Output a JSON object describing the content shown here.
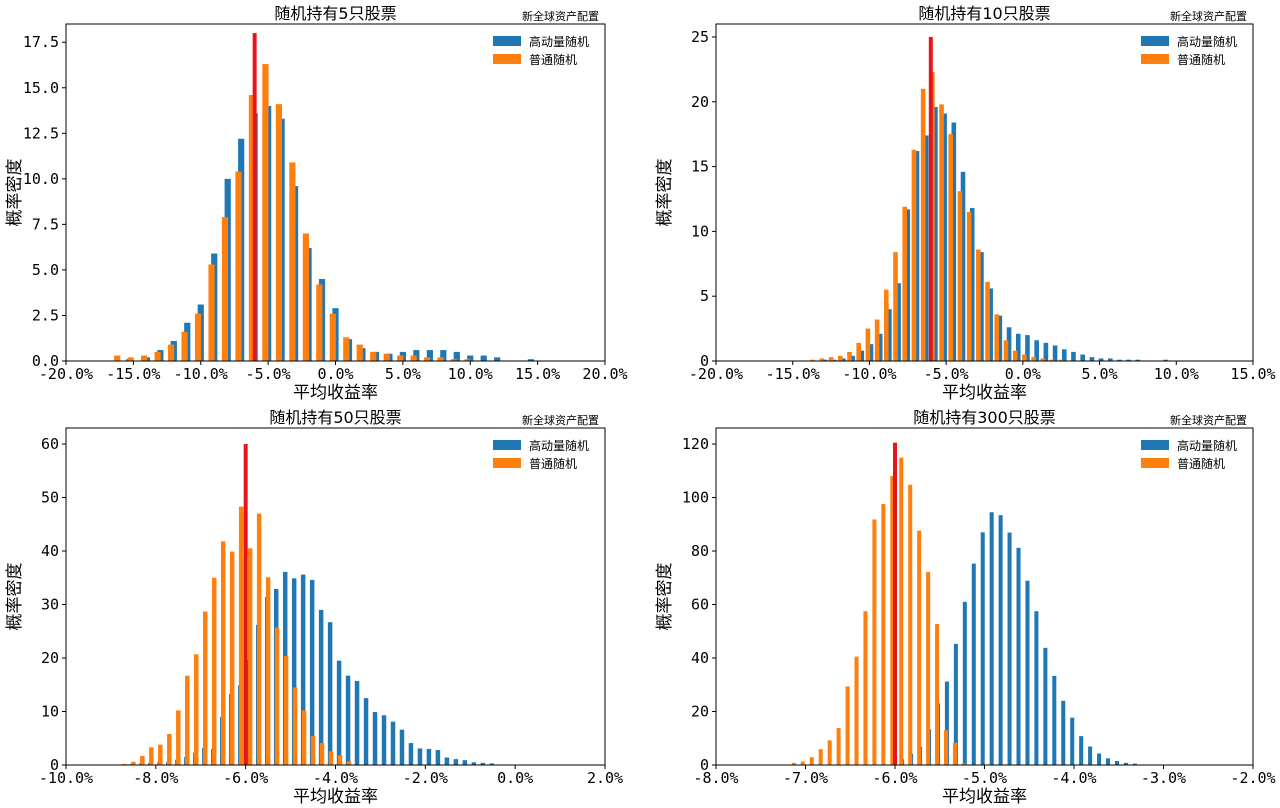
{
  "watermark": "新全球资产配置",
  "colors": {
    "momentum": "#1f77b4",
    "normal": "#ff7f0e",
    "marker": "#e8141c",
    "axis": "#000000",
    "background": "#ffffff"
  },
  "chart_data": [
    {
      "type": "bar",
      "title": "随机持有5只股票",
      "xlabel": "平均收益率",
      "ylabel": "概率密度",
      "xlim": [
        -20,
        20
      ],
      "ylim": [
        0,
        18.5
      ],
      "xticks": [
        -20,
        -15,
        -10,
        -5,
        0,
        5,
        10,
        15,
        20
      ],
      "xtick_labels": [
        "-20.0%",
        "-15.0%",
        "-10.0%",
        "-5.0%",
        "0.0%",
        "5.0%",
        "10.0%",
        "15.0%",
        "20.0%"
      ],
      "yticks": [
        0,
        2.5,
        5,
        7.5,
        10,
        12.5,
        15,
        17.5
      ],
      "ytick_labels": [
        "0.0",
        "2.5",
        "5.0",
        "7.5",
        "10.0",
        "12.5",
        "15.0",
        "17.5"
      ],
      "legend_position": "top-right",
      "bar_width": 0.46,
      "marker_line": {
        "x": -6.0,
        "height": 18.0
      },
      "series": [
        {
          "name": "高动量随机",
          "color": "#1f77b4",
          "x": [
            -15.3,
            -14.0,
            -13.0,
            -12.0,
            -11.0,
            -10.0,
            -9.0,
            -8.0,
            -7.0,
            -6.0,
            -5.0,
            -4.0,
            -3.0,
            -2.0,
            -1.0,
            0.0,
            1.0,
            2.0,
            3.0,
            4.0,
            5.0,
            6.0,
            7.0,
            8.0,
            9.0,
            10.0,
            11.0,
            12.0,
            14.5
          ],
          "values": [
            0.1,
            0.2,
            0.6,
            1.1,
            2.1,
            3.1,
            5.9,
            10.0,
            12.2,
            13.6,
            14.0,
            13.3,
            9.6,
            6.2,
            4.5,
            2.9,
            1.2,
            0.7,
            0.5,
            0.4,
            0.5,
            0.6,
            0.6,
            0.6,
            0.5,
            0.3,
            0.3,
            0.2,
            0.1
          ]
        },
        {
          "name": "普通随机",
          "color": "#ff7f0e",
          "x": [
            -16.2,
            -15.2,
            -14.2,
            -13.2,
            -12.2,
            -11.2,
            -10.2,
            -9.2,
            -8.2,
            -7.2,
            -6.2,
            -5.2,
            -4.2,
            -3.2,
            -2.2,
            -1.2,
            -0.2,
            0.8,
            1.8,
            2.8,
            3.8,
            4.8,
            5.8,
            6.8,
            7.8,
            8.8,
            9.8
          ],
          "values": [
            0.3,
            0.2,
            0.3,
            0.5,
            0.9,
            1.6,
            2.6,
            5.3,
            7.9,
            10.4,
            14.6,
            16.3,
            14.1,
            10.9,
            7.0,
            4.2,
            2.6,
            1.3,
            0.9,
            0.5,
            0.4,
            0.3,
            0.3,
            0.2,
            0.2,
            0.1,
            0.1
          ]
        }
      ]
    },
    {
      "type": "bar",
      "title": "随机持有10只股票",
      "xlabel": "平均收益率",
      "ylabel": "概率密度",
      "xlim": [
        -20,
        15
      ],
      "ylim": [
        0,
        26
      ],
      "xticks": [
        -20,
        -15,
        -10,
        -5,
        0,
        5,
        10,
        15
      ],
      "xtick_labels": [
        "-20.0%",
        "-15.0%",
        "-10.0%",
        "-5.0%",
        "0.0%",
        "5.0%",
        "10.0%",
        "15.0%"
      ],
      "yticks": [
        0,
        5,
        10,
        15,
        20,
        25
      ],
      "ytick_labels": [
        "0",
        "5",
        "10",
        "15",
        "20",
        "25"
      ],
      "legend_position": "top-right",
      "bar_width": 0.3,
      "marker_line": {
        "x": -6.0,
        "height": 25.0
      },
      "series": [
        {
          "name": "高动量随机",
          "color": "#1f77b4",
          "x": [
            -12.9,
            -12.3,
            -11.7,
            -11.1,
            -10.5,
            -9.9,
            -9.3,
            -8.7,
            -8.1,
            -7.5,
            -6.9,
            -6.3,
            -5.7,
            -5.1,
            -4.5,
            -3.9,
            -3.3,
            -2.7,
            -2.1,
            -1.5,
            -0.9,
            -0.3,
            0.3,
            0.9,
            1.5,
            2.1,
            2.7,
            3.3,
            3.9,
            4.5,
            5.1,
            5.7,
            6.3,
            6.9,
            7.5,
            9.3
          ],
          "values": [
            0.1,
            0.1,
            0.2,
            0.4,
            0.8,
            1.3,
            2.1,
            4.0,
            6.0,
            11.7,
            16.2,
            17.4,
            19.6,
            19.1,
            18.4,
            14.6,
            11.8,
            8.4,
            5.6,
            3.5,
            2.6,
            2.1,
            2.0,
            1.6,
            1.4,
            1.2,
            0.9,
            0.7,
            0.5,
            0.3,
            0.2,
            0.2,
            0.1,
            0.1,
            0.1,
            0.1
          ]
        },
        {
          "name": "普通随机",
          "color": "#ff7f0e",
          "x": [
            -13.7,
            -13.1,
            -12.5,
            -11.9,
            -11.3,
            -10.7,
            -10.1,
            -9.5,
            -8.9,
            -8.3,
            -7.7,
            -7.1,
            -6.5,
            -5.9,
            -5.3,
            -4.7,
            -4.1,
            -3.5,
            -2.9,
            -2.3,
            -1.7,
            -1.1,
            -0.5,
            0.1,
            0.7,
            1.3,
            1.9,
            2.5
          ],
          "values": [
            0.1,
            0.2,
            0.3,
            0.4,
            0.7,
            1.4,
            2.5,
            3.2,
            5.5,
            8.4,
            11.9,
            16.3,
            21.0,
            22.3,
            19.8,
            17.5,
            13.1,
            11.5,
            8.6,
            6.1,
            3.6,
            1.6,
            0.8,
            0.5,
            0.3,
            0.2,
            0.1,
            0.1
          ]
        }
      ]
    },
    {
      "type": "bar",
      "title": "随机持有50只股票",
      "xlabel": "平均收益率",
      "ylabel": "概率密度",
      "xlim": [
        -10,
        2
      ],
      "ylim": [
        0,
        63
      ],
      "xticks": [
        -10,
        -8,
        -6,
        -4,
        -2,
        0,
        2
      ],
      "xtick_labels": [
        "-10.0%",
        "-8.0%",
        "-6.0%",
        "-4.0%",
        "-2.0%",
        "0.0%",
        "2.0%"
      ],
      "yticks": [
        0,
        10,
        20,
        30,
        40,
        50,
        60
      ],
      "ytick_labels": [
        "0",
        "10",
        "20",
        "30",
        "40",
        "50",
        "60"
      ],
      "legend_position": "top-right",
      "bar_width": 0.1,
      "marker_line": {
        "x": -6.0,
        "height": 60.0
      },
      "series": [
        {
          "name": "高动量随机",
          "color": "#1f77b4",
          "x": [
            -8.52,
            -8.32,
            -8.12,
            -7.92,
            -7.72,
            -7.52,
            -7.32,
            -7.12,
            -6.92,
            -6.72,
            -6.52,
            -6.32,
            -6.12,
            -5.92,
            -5.72,
            -5.52,
            -5.32,
            -5.12,
            -4.92,
            -4.72,
            -4.52,
            -4.32,
            -4.12,
            -3.92,
            -3.72,
            -3.52,
            -3.32,
            -3.12,
            -2.92,
            -2.72,
            -2.52,
            -2.32,
            -2.12,
            -1.92,
            -1.72,
            -1.52,
            -1.32,
            -1.12,
            -0.92,
            -0.72,
            -0.52
          ],
          "values": [
            0.2,
            0.3,
            0.4,
            0.5,
            0.6,
            1.0,
            1.5,
            2.3,
            3.2,
            3.0,
            9.0,
            13.3,
            14.9,
            19.6,
            26.2,
            31.4,
            32.9,
            36.1,
            34.9,
            35.6,
            34.6,
            29.0,
            26.7,
            19.5,
            16.7,
            15.7,
            12.5,
            9.9,
            9.3,
            8.1,
            6.6,
            4.1,
            3.1,
            3.0,
            2.8,
            1.4,
            1.1,
            0.9,
            0.5,
            0.4,
            0.3
          ]
        },
        {
          "name": "普通随机",
          "color": "#ff7f0e",
          "x": [
            -8.7,
            -8.5,
            -8.3,
            -8.1,
            -7.9,
            -7.7,
            -7.5,
            -7.3,
            -7.1,
            -6.9,
            -6.7,
            -6.5,
            -6.3,
            -6.1,
            -5.9,
            -5.7,
            -5.5,
            -5.3,
            -5.1,
            -4.9,
            -4.7,
            -4.5,
            -4.3,
            -4.1,
            -3.9,
            -3.7
          ],
          "values": [
            0.2,
            0.6,
            1.7,
            3.3,
            3.8,
            5.8,
            10.2,
            16.7,
            20.7,
            28.7,
            35.0,
            41.8,
            39.9,
            48.3,
            40.5,
            47.0,
            35.1,
            25.7,
            20.4,
            14.5,
            10.2,
            5.4,
            4.1,
            2.6,
            1.8,
            0.7
          ]
        }
      ]
    },
    {
      "type": "bar",
      "title": "随机持有300只股票",
      "xlabel": "平均收益率",
      "ylabel": "概率密度",
      "xlim": [
        -8,
        -2
      ],
      "ylim": [
        0,
        126
      ],
      "xticks": [
        -8,
        -7,
        -6,
        -5,
        -4,
        -3,
        -2
      ],
      "xtick_labels": [
        "-8.0%",
        "-7.0%",
        "-6.0%",
        "-5.0%",
        "-4.0%",
        "-3.0%",
        "-2.0%"
      ],
      "yticks": [
        0,
        20,
        40,
        60,
        80,
        100,
        120
      ],
      "ytick_labels": [
        "0",
        "20",
        "40",
        "60",
        "80",
        "100",
        "120"
      ],
      "legend_position": "top-right",
      "bar_width": 0.045,
      "marker_line": {
        "x": -6.0,
        "height": 120.5
      },
      "series": [
        {
          "name": "高动量随机",
          "color": "#1f77b4",
          "x": [
            -6.02,
            -5.92,
            -5.82,
            -5.72,
            -5.62,
            -5.52,
            -5.42,
            -5.32,
            -5.22,
            -5.12,
            -5.02,
            -4.92,
            -4.82,
            -4.72,
            -4.62,
            -4.52,
            -4.42,
            -4.32,
            -4.22,
            -4.12,
            -4.02,
            -3.92,
            -3.82,
            -3.72,
            -3.62,
            -3.52,
            -3.42,
            -3.32
          ],
          "values": [
            1.0,
            2.2,
            4.2,
            6.9,
            13.4,
            23.0,
            31.2,
            45.3,
            61.0,
            75.3,
            87.0,
            94.5,
            93.4,
            86.9,
            81.2,
            68.9,
            57.5,
            43.8,
            33.3,
            24.0,
            17.7,
            10.8,
            6.9,
            4.3,
            2.5,
            1.5,
            0.8,
            0.5
          ]
        },
        {
          "name": "普通随机",
          "color": "#ff7f0e",
          "x": [
            -7.13,
            -7.03,
            -6.93,
            -6.83,
            -6.73,
            -6.63,
            -6.53,
            -6.43,
            -6.33,
            -6.23,
            -6.13,
            -6.03,
            -5.93,
            -5.83,
            -5.73,
            -5.63,
            -5.53,
            -5.43,
            -5.33,
            -5.23
          ],
          "values": [
            0.8,
            1.3,
            2.9,
            5.9,
            9.2,
            13.8,
            29.4,
            40.5,
            57.5,
            91.8,
            97.6,
            108.0,
            114.9,
            104.8,
            87.6,
            72.2,
            52.7,
            13.0,
            8.3,
            0.6
          ]
        }
      ]
    }
  ]
}
